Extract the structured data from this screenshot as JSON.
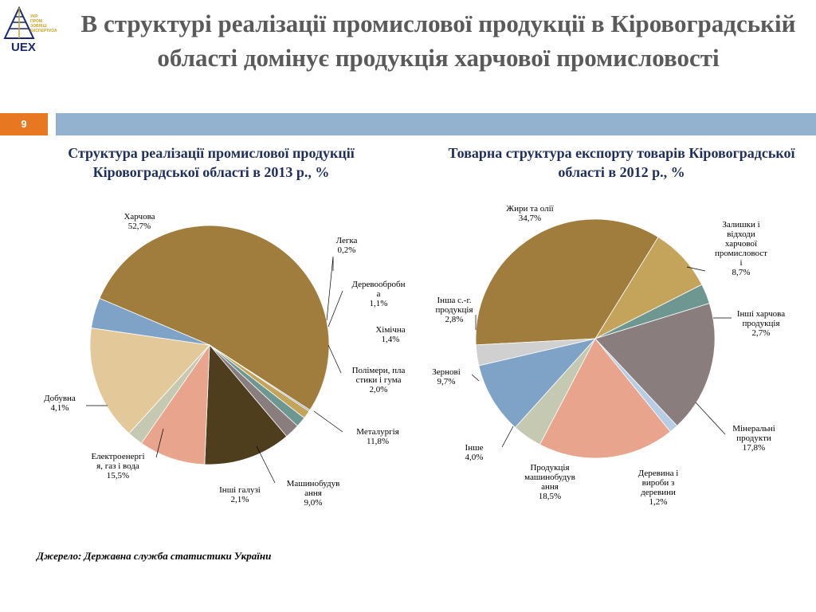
{
  "logo": {
    "name": "UEX",
    "small_text": [
      "УКР",
      "ПРОМ",
      "ЗОВНІШ",
      "ЕКСПЕРТИЗА"
    ]
  },
  "page": {
    "title": "В структурі реалізації промислової продукції в Кіровоградській області  домінує продукція харчової промисловості",
    "number": "9"
  },
  "colors": {
    "accent_orange": "#e87722",
    "bar_blue": "#93b2d0",
    "title_gray": "#5a5a5a",
    "subtitle_navy": "#1f2f5c"
  },
  "source": "Джерело: Державна служба статистики України",
  "chart_data": [
    {
      "type": "pie",
      "title": "Структура реалізації промислової продукції Кіровоградської області в  2013 р., %",
      "slices": [
        {
          "label": "Харчова",
          "value": 52.7,
          "value_text": "52,7%",
          "color": "#a07d3c"
        },
        {
          "label": "Легка",
          "value": 0.2,
          "value_text": "0,2%",
          "color": "#7f9fbd"
        },
        {
          "label": "Деревообробна",
          "value": 1.1,
          "value_text": "1,1%",
          "color": "#c4a35a"
        },
        {
          "label": "Хімічна",
          "value": 1.4,
          "value_text": "1,4%",
          "color": "#6f9791"
        },
        {
          "label": "Полімери, пластики і гума",
          "value": 2.0,
          "value_text": "2,0%",
          "color": "#8a7d7d"
        },
        {
          "label": "Металургія",
          "value": 11.8,
          "value_text": "11,8%",
          "color": "#4e3e1e"
        },
        {
          "label": "Машинобудування",
          "value": 9.0,
          "value_text": "9,0%",
          "color": "#e8a48c"
        },
        {
          "label": "Інші галузі",
          "value": 2.1,
          "value_text": "2,1%",
          "color": "#c5c9b1"
        },
        {
          "label": "Електроенергія, газ і вода",
          "value": 15.5,
          "value_text": "15,5%",
          "color": "#e3c89a"
        },
        {
          "label": "Добувна",
          "value": 4.1,
          "value_text": "4,1%",
          "color": "#7fa3c6"
        }
      ]
    },
    {
      "type": "pie",
      "title": "Товарна структура експорту товарів Кіровоградської області в  2012 р., %",
      "slices": [
        {
          "label": "Жири та олії",
          "value": 34.7,
          "value_text": "34,7%",
          "color": "#a07d3c"
        },
        {
          "label": "Залишки і відходи харчової промисловості",
          "value": 8.7,
          "value_text": "8,7%",
          "color": "#c4a35a"
        },
        {
          "label": "Інші харчова продукція",
          "value": 2.7,
          "value_text": "2,7%",
          "color": "#6f9791"
        },
        {
          "label": "Мінеральні продукти",
          "value": 17.8,
          "value_text": "17,8%",
          "color": "#8a7d7d"
        },
        {
          "label": "Деревина і вироби з деревини",
          "value": 1.2,
          "value_text": "1,2%",
          "color": "#b7cde3"
        },
        {
          "label": "Продукція машинобудування",
          "value": 18.5,
          "value_text": "18,5%",
          "color": "#e8a48c"
        },
        {
          "label": "Інше",
          "value": 4.0,
          "value_text": "4,0%",
          "color": "#c5c9b1"
        },
        {
          "label": "Зернові",
          "value": 9.7,
          "value_text": "9,7%",
          "color": "#7fa3c6"
        },
        {
          "label": "Інша с.-г. продукція",
          "value": 2.8,
          "value_text": "2,8%",
          "color": "#d0d0d0"
        }
      ]
    }
  ],
  "labels": {
    "left": [
      [
        "Харчова",
        "52,7%"
      ],
      [
        "Легка",
        "0,2%"
      ],
      [
        "Деревообробн",
        "а",
        "1,1%"
      ],
      [
        "Хімічна",
        "1,4%"
      ],
      [
        "Полімери, пла",
        "стики і гума",
        "2,0%"
      ],
      [
        "Металургія",
        "11,8%"
      ],
      [
        "Машинобудув",
        "ання",
        "9,0%"
      ],
      [
        "Інші галузі",
        "2,1%"
      ],
      [
        "Електроенергі",
        "я, газ і вода",
        "15,5%"
      ],
      [
        "Добувна",
        "4,1%"
      ]
    ],
    "right": [
      [
        "Жири та олії",
        "34,7%"
      ],
      [
        "Залишки і",
        "відходи",
        "харчової",
        "промисловост",
        "і",
        "8,7%"
      ],
      [
        "Інші харчова",
        "продукція",
        "2,7%"
      ],
      [
        "Мінеральні",
        "продукти",
        "17,8%"
      ],
      [
        "Деревина і",
        "вироби з",
        "деревини",
        "1,2%"
      ],
      [
        "Продукція",
        "машинобудув",
        "ання",
        "18,5%"
      ],
      [
        "Інше",
        "4,0%"
      ],
      [
        "Зернові",
        "9,7%"
      ],
      [
        "Інша с.-г.",
        "продукція",
        "2,8%"
      ]
    ]
  }
}
